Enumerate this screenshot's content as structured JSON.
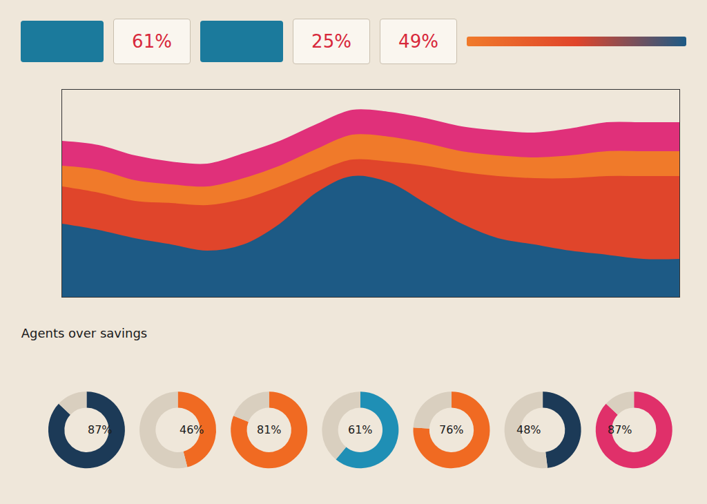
{
  "stat_cards": [
    "61%",
    "25%",
    "49%"
  ],
  "chart_data": [
    {
      "type": "area",
      "stacked": true,
      "grid": false,
      "tick_labels": false,
      "categories": [
        null,
        null,
        null,
        null,
        null,
        null,
        null,
        null,
        null,
        null,
        null,
        null,
        null,
        null,
        null,
        null,
        null,
        null
      ],
      "ylim": [
        0,
        100
      ],
      "yticks": [],
      "series": [
        {
          "color": "#1d5a85",
          "values": [
            35,
            32,
            28,
            25,
            22,
            25,
            35,
            50,
            58,
            55,
            45,
            35,
            28,
            25,
            22,
            20,
            18,
            18
          ]
        },
        {
          "color": "#e0452b",
          "values": [
            18,
            18,
            18,
            20,
            22,
            22,
            18,
            10,
            8,
            10,
            18,
            25,
            30,
            32,
            35,
            38,
            40,
            40
          ]
        },
        {
          "color": "#f07a2a",
          "values": [
            10,
            11,
            10,
            9,
            9,
            10,
            10,
            11,
            12,
            12,
            11,
            10,
            10,
            10,
            11,
            12,
            12,
            12
          ]
        },
        {
          "color": "#e0307a",
          "values": [
            12,
            12,
            12,
            11,
            11,
            12,
            12,
            12,
            12,
            12,
            12,
            12,
            12,
            12,
            13,
            14,
            14,
            14
          ]
        }
      ]
    },
    {
      "type": "donut",
      "title": "Agents over savings",
      "data_labels": true,
      "values": [
        87,
        46,
        81,
        61,
        76,
        48,
        87
      ],
      "value_labels": [
        "87%",
        "46%",
        "81%",
        "61%",
        "76%",
        "48%",
        "87%"
      ],
      "colors": [
        "#1c3a57",
        "#f06a22",
        "#f06a22",
        "#1f8fb5",
        "#f06a22",
        "#1c3a57",
        "#e0306a"
      ]
    }
  ]
}
